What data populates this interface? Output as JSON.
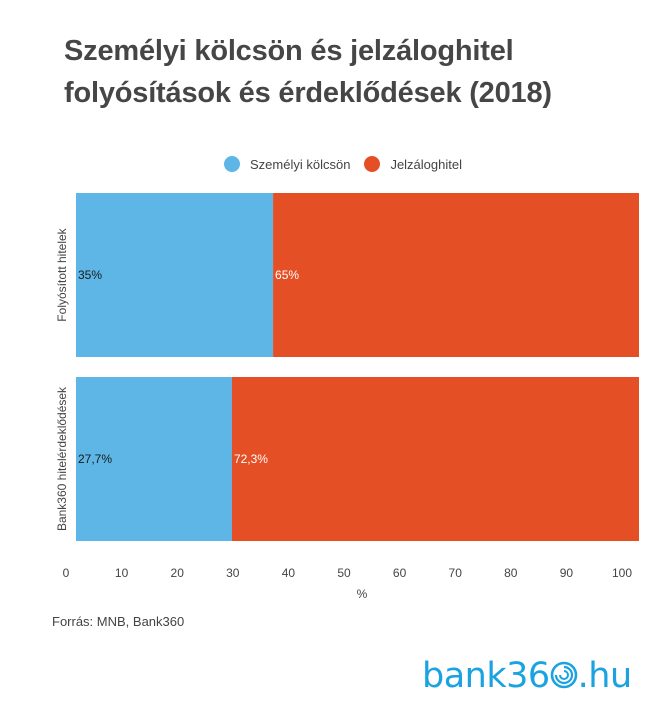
{
  "colors": {
    "personal": "#5DB6E5",
    "mortgage": "#E54F25",
    "text": "#444444",
    "logo": "#1AA3E0"
  },
  "source": "Forrás: MNB, Bank360",
  "logo": {
    "text": "bank360.hu",
    "prefix": "bank36",
    "suffix": ".hu",
    "icon": "spiral-o-icon"
  },
  "chart_data": {
    "type": "bar",
    "orientation": "horizontal",
    "stacked": true,
    "title": "Személyi kölcsön és jelzáloghitel folyósítások és érdeklődések (2018)",
    "title_lines": [
      "Személyi kölcsön és jelzáloghitel",
      "folyósítások és érdeklődések (2018)"
    ],
    "categories": [
      "Folyósított hitelek",
      "Bank360 hitelérdeklődések"
    ],
    "series": [
      {
        "name": "Személyi kölcsön",
        "values": [
          35,
          27.7
        ],
        "labels": [
          "35%",
          "27,7%"
        ]
      },
      {
        "name": "Jelzáloghitel",
        "values": [
          65,
          72.3
        ],
        "labels": [
          "65%",
          "72,3%"
        ]
      }
    ],
    "xlabel": "%",
    "ylabel": "",
    "xlim": [
      0,
      100
    ],
    "xticks": [
      "0",
      "10",
      "20",
      "30",
      "40",
      "50",
      "60",
      "70",
      "80",
      "90",
      "100"
    ],
    "grid": false,
    "legend": "top-center"
  }
}
